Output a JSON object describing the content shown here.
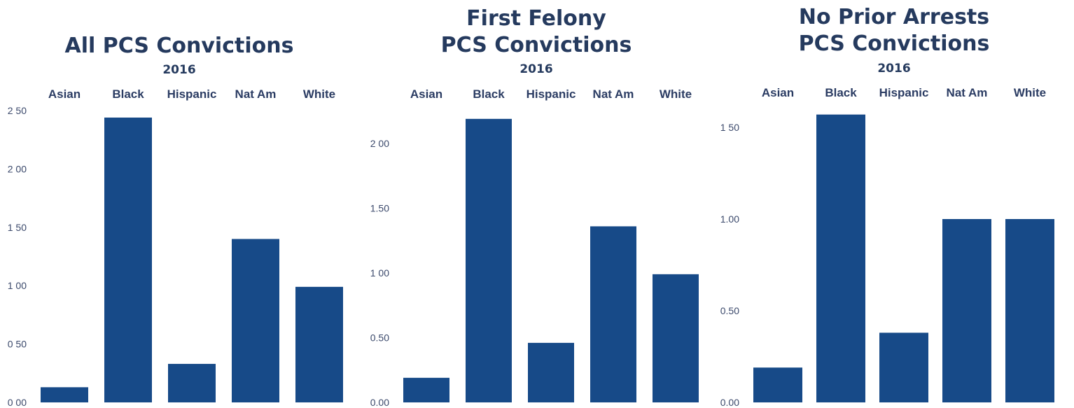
{
  "colors": {
    "bar": "#174a88",
    "title": "#253a5e",
    "text": "#2b3c63"
  },
  "chart_data": [
    {
      "type": "bar",
      "title_lines": [
        "All PCS Convictions"
      ],
      "subtitle": "2016",
      "categories": [
        "Asian",
        "Black",
        "Hispanic",
        "Nat Am",
        "White"
      ],
      "values": [
        0.13,
        2.44,
        0.33,
        1.4,
        0.99
      ],
      "ylim": [
        0,
        2.5
      ],
      "yticks": [
        0,
        0.5,
        1.0,
        1.5,
        2.0,
        2.5
      ],
      "ytick_labels": [
        "0 00",
        "0 50",
        "1 00",
        "1 50",
        "2 00",
        "2 50"
      ],
      "grid": false,
      "legend": "none"
    },
    {
      "type": "bar",
      "title_lines": [
        "First Felony",
        "PCS Convictions"
      ],
      "subtitle": "2016",
      "categories": [
        "Asian",
        "Black",
        "Hispanic",
        "Nat Am",
        "White"
      ],
      "values": [
        0.19,
        2.19,
        0.46,
        1.36,
        0.99
      ],
      "ylim": [
        0,
        2.0
      ],
      "yticks": [
        0,
        0.5,
        1.0,
        1.5,
        2.0
      ],
      "ytick_labels": [
        "0.00",
        "0.50",
        "1 00",
        "1.50",
        "2 00"
      ],
      "grid": false,
      "legend": "none"
    },
    {
      "type": "bar",
      "title_lines": [
        "No Prior Arrests",
        "PCS Convictions"
      ],
      "subtitle": "2016",
      "categories": [
        "Asian",
        "Black",
        "Hispanic",
        "Nat Am",
        "White"
      ],
      "values": [
        0.19,
        1.57,
        0.38,
        1.0,
        1.0
      ],
      "ylim": [
        0,
        1.5
      ],
      "yticks": [
        0,
        0.5,
        1.0,
        1.5
      ],
      "ytick_labels": [
        "0.00",
        "0.50",
        "1.00",
        "1 50"
      ],
      "grid": false,
      "legend": "none"
    }
  ]
}
